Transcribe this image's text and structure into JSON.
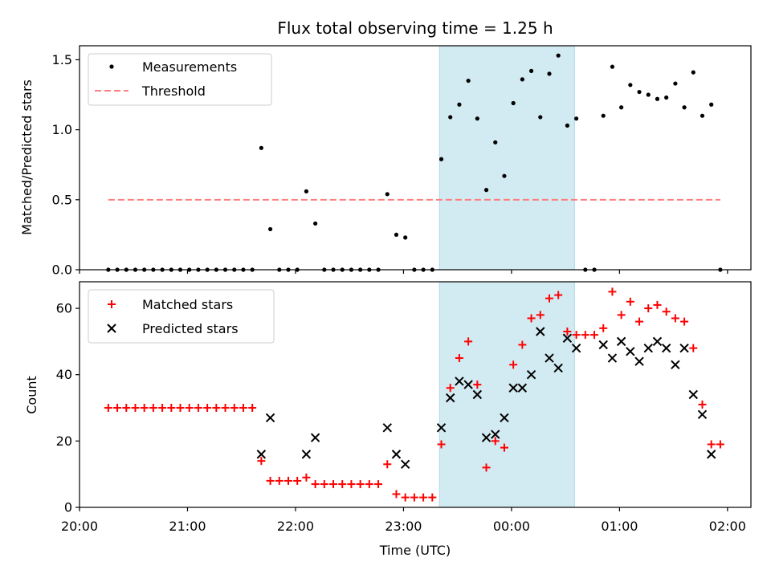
{
  "chart_data": [
    {
      "type": "scatter",
      "title": "Flux total observing time = 1.25 h",
      "ylabel": "Matched/Predicted stars",
      "xlim": [
        "20:00",
        "02:13"
      ],
      "ylim": [
        0,
        1.6
      ],
      "yticks": [
        0.0,
        0.5,
        1.0,
        1.5
      ],
      "ytick_labels": [
        "0.0",
        "0.5",
        "1.0",
        "1.5"
      ],
      "shaded_interval": {
        "start": "23:20",
        "end": "00:35",
        "color": "#add8e6"
      },
      "legend_position": "upper left",
      "threshold": {
        "name": "Threshold",
        "value": 0.5,
        "x_start": "20:16",
        "x_end": "01:56",
        "color": "#ff7f7f",
        "style": "dashed"
      },
      "series": [
        {
          "name": "Measurements",
          "color": "#000000",
          "marker": "dot",
          "points": [
            [
              "20:16",
              0
            ],
            [
              "20:21",
              0
            ],
            [
              "20:26",
              0
            ],
            [
              "20:31",
              0
            ],
            [
              "20:36",
              0
            ],
            [
              "20:41",
              0
            ],
            [
              "20:46",
              0
            ],
            [
              "20:51",
              0
            ],
            [
              "20:56",
              0
            ],
            [
              "21:01",
              0
            ],
            [
              "21:06",
              0
            ],
            [
              "21:11",
              0
            ],
            [
              "21:16",
              0
            ],
            [
              "21:21",
              0
            ],
            [
              "21:26",
              0
            ],
            [
              "21:31",
              0
            ],
            [
              "21:36",
              0
            ],
            [
              "21:41",
              0.87
            ],
            [
              "21:46",
              0.29
            ],
            [
              "21:51",
              0
            ],
            [
              "21:56",
              0
            ],
            [
              "22:01",
              0
            ],
            [
              "22:06",
              0.56
            ],
            [
              "22:11",
              0.33
            ],
            [
              "22:16",
              0
            ],
            [
              "22:21",
              0
            ],
            [
              "22:26",
              0
            ],
            [
              "22:31",
              0
            ],
            [
              "22:36",
              0
            ],
            [
              "22:41",
              0
            ],
            [
              "22:46",
              0
            ],
            [
              "22:51",
              0.54
            ],
            [
              "22:56",
              0.25
            ],
            [
              "23:01",
              0.23
            ],
            [
              "23:06",
              0
            ],
            [
              "23:11",
              0
            ],
            [
              "23:16",
              0
            ],
            [
              "23:21",
              0.79
            ],
            [
              "23:26",
              1.09
            ],
            [
              "23:31",
              1.18
            ],
            [
              "23:36",
              1.35
            ],
            [
              "23:41",
              1.08
            ],
            [
              "23:46",
              0.57
            ],
            [
              "23:51",
              0.91
            ],
            [
              "23:56",
              0.67
            ],
            [
              "00:01",
              1.19
            ],
            [
              "00:06",
              1.36
            ],
            [
              "00:11",
              1.42
            ],
            [
              "00:16",
              1.09
            ],
            [
              "00:21",
              1.4
            ],
            [
              "00:26",
              1.53
            ],
            [
              "00:31",
              1.03
            ],
            [
              "00:36",
              1.08
            ],
            [
              "00:41",
              0
            ],
            [
              "00:46",
              0
            ],
            [
              "00:51",
              1.1
            ],
            [
              "00:56",
              1.45
            ],
            [
              "01:01",
              1.16
            ],
            [
              "01:06",
              1.32
            ],
            [
              "01:11",
              1.27
            ],
            [
              "01:16",
              1.25
            ],
            [
              "01:21",
              1.22
            ],
            [
              "01:26",
              1.23
            ],
            [
              "01:31",
              1.33
            ],
            [
              "01:36",
              1.16
            ],
            [
              "01:41",
              1.41
            ],
            [
              "01:46",
              1.1
            ],
            [
              "01:51",
              1.18
            ],
            [
              "01:56",
              0
            ]
          ]
        }
      ]
    },
    {
      "type": "scatter",
      "xlabel": "Time (UTC)",
      "ylabel": "Count",
      "xlim": [
        "20:00",
        "02:13"
      ],
      "xticks": [
        "20:00",
        "21:00",
        "22:00",
        "23:00",
        "00:00",
        "01:00",
        "02:00"
      ],
      "ylim": [
        0,
        68
      ],
      "yticks": [
        0,
        20,
        40,
        60
      ],
      "ytick_labels": [
        "0",
        "20",
        "40",
        "60"
      ],
      "shaded_interval": {
        "start": "23:20",
        "end": "00:35",
        "color": "#add8e6"
      },
      "legend_position": "upper left",
      "series": [
        {
          "name": "Matched stars",
          "color": "#ff0000",
          "marker": "plus",
          "points": [
            [
              "20:16",
              30
            ],
            [
              "20:21",
              30
            ],
            [
              "20:26",
              30
            ],
            [
              "20:31",
              30
            ],
            [
              "20:36",
              30
            ],
            [
              "20:41",
              30
            ],
            [
              "20:46",
              30
            ],
            [
              "20:51",
              30
            ],
            [
              "20:56",
              30
            ],
            [
              "21:01",
              30
            ],
            [
              "21:06",
              30
            ],
            [
              "21:11",
              30
            ],
            [
              "21:16",
              30
            ],
            [
              "21:21",
              30
            ],
            [
              "21:26",
              30
            ],
            [
              "21:31",
              30
            ],
            [
              "21:36",
              30
            ],
            [
              "21:41",
              14
            ],
            [
              "21:46",
              8
            ],
            [
              "21:51",
              8
            ],
            [
              "21:56",
              8
            ],
            [
              "22:01",
              8
            ],
            [
              "22:06",
              9
            ],
            [
              "22:11",
              7
            ],
            [
              "22:16",
              7
            ],
            [
              "22:21",
              7
            ],
            [
              "22:26",
              7
            ],
            [
              "22:31",
              7
            ],
            [
              "22:36",
              7
            ],
            [
              "22:41",
              7
            ],
            [
              "22:46",
              7
            ],
            [
              "22:51",
              13
            ],
            [
              "22:56",
              4
            ],
            [
              "23:01",
              3
            ],
            [
              "23:06",
              3
            ],
            [
              "23:11",
              3
            ],
            [
              "23:16",
              3
            ],
            [
              "23:21",
              19
            ],
            [
              "23:26",
              36
            ],
            [
              "23:31",
              45
            ],
            [
              "23:36",
              50
            ],
            [
              "23:41",
              37
            ],
            [
              "23:46",
              12
            ],
            [
              "23:51",
              20
            ],
            [
              "23:56",
              18
            ],
            [
              "00:01",
              43
            ],
            [
              "00:06",
              49
            ],
            [
              "00:11",
              57
            ],
            [
              "00:16",
              58
            ],
            [
              "00:21",
              63
            ],
            [
              "00:26",
              64
            ],
            [
              "00:31",
              53
            ],
            [
              "00:36",
              52
            ],
            [
              "00:41",
              52
            ],
            [
              "00:46",
              52
            ],
            [
              "00:51",
              54
            ],
            [
              "00:56",
              65
            ],
            [
              "01:01",
              58
            ],
            [
              "01:06",
              62
            ],
            [
              "01:11",
              56
            ],
            [
              "01:16",
              60
            ],
            [
              "01:21",
              61
            ],
            [
              "01:26",
              59
            ],
            [
              "01:31",
              57
            ],
            [
              "01:36",
              56
            ],
            [
              "01:41",
              48
            ],
            [
              "01:46",
              31
            ],
            [
              "01:51",
              19
            ],
            [
              "01:56",
              19
            ]
          ]
        },
        {
          "name": "Predicted stars",
          "color": "#000000",
          "marker": "x",
          "points": [
            [
              "21:41",
              16
            ],
            [
              "21:46",
              27
            ],
            [
              "22:06",
              16
            ],
            [
              "22:11",
              21
            ],
            [
              "22:51",
              24
            ],
            [
              "22:56",
              16
            ],
            [
              "23:01",
              13
            ],
            [
              "23:21",
              24
            ],
            [
              "23:26",
              33
            ],
            [
              "23:31",
              38
            ],
            [
              "23:36",
              37
            ],
            [
              "23:41",
              34
            ],
            [
              "23:46",
              21
            ],
            [
              "23:51",
              22
            ],
            [
              "23:56",
              27
            ],
            [
              "00:01",
              36
            ],
            [
              "00:06",
              36
            ],
            [
              "00:11",
              40
            ],
            [
              "00:16",
              53
            ],
            [
              "00:21",
              45
            ],
            [
              "00:26",
              42
            ],
            [
              "00:31",
              51
            ],
            [
              "00:36",
              48
            ],
            [
              "00:51",
              49
            ],
            [
              "00:56",
              45
            ],
            [
              "01:01",
              50
            ],
            [
              "01:06",
              47
            ],
            [
              "01:11",
              44
            ],
            [
              "01:16",
              48
            ],
            [
              "01:21",
              50
            ],
            [
              "01:26",
              48
            ],
            [
              "01:31",
              43
            ],
            [
              "01:36",
              48
            ],
            [
              "01:41",
              34
            ],
            [
              "01:46",
              28
            ],
            [
              "01:51",
              16
            ]
          ]
        }
      ]
    }
  ]
}
